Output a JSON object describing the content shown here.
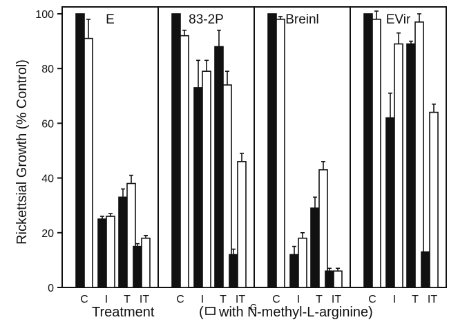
{
  "colors": {
    "dark": "#111111",
    "light": "#ffffff",
    "axis": "#111111"
  },
  "chart_data": {
    "type": "bar",
    "ylabel": "Rickettsial Growth (% Control)",
    "xlabel": "Treatment",
    "legend_text": "with N",
    "legend_sup": "G",
    "legend_text_after": "-methyl-L-arginine)",
    "legend_paren_open": "(",
    "ylim": [
      0,
      100
    ],
    "yticks": [
      "0",
      "20",
      "40",
      "60",
      "80",
      "100"
    ],
    "categories": [
      "C",
      "I",
      "T",
      "IT"
    ],
    "panels": [
      {
        "name": "E",
        "series": [
          {
            "values": [
              100,
              25,
              33,
              15
            ],
            "errors": [
              0,
              1,
              3,
              1
            ]
          },
          {
            "values": [
              91,
              26,
              38,
              18
            ],
            "errors": [
              7,
              1,
              3,
              1
            ]
          }
        ]
      },
      {
        "name": "83-2P",
        "series": [
          {
            "values": [
              100,
              73,
              88,
              12
            ],
            "errors": [
              0,
              10,
              6,
              2
            ]
          },
          {
            "values": [
              92,
              79,
              74,
              46
            ],
            "errors": [
              2,
              4,
              5,
              3
            ]
          }
        ]
      },
      {
        "name": "Breinl",
        "series": [
          {
            "values": [
              100,
              12,
              29,
              6
            ],
            "errors": [
              0,
              3,
              4,
              1
            ]
          },
          {
            "values": [
              98,
              18,
              43,
              6
            ],
            "errors": [
              1,
              2,
              3,
              1
            ]
          }
        ]
      },
      {
        "name": "EVir",
        "series": [
          {
            "values": [
              100,
              62,
              89,
              13
            ],
            "errors": [
              0,
              9,
              1,
              0
            ]
          },
          {
            "values": [
              98,
              89,
              97,
              64
            ],
            "errors": [
              3,
              4,
              3,
              3
            ]
          }
        ]
      }
    ]
  }
}
